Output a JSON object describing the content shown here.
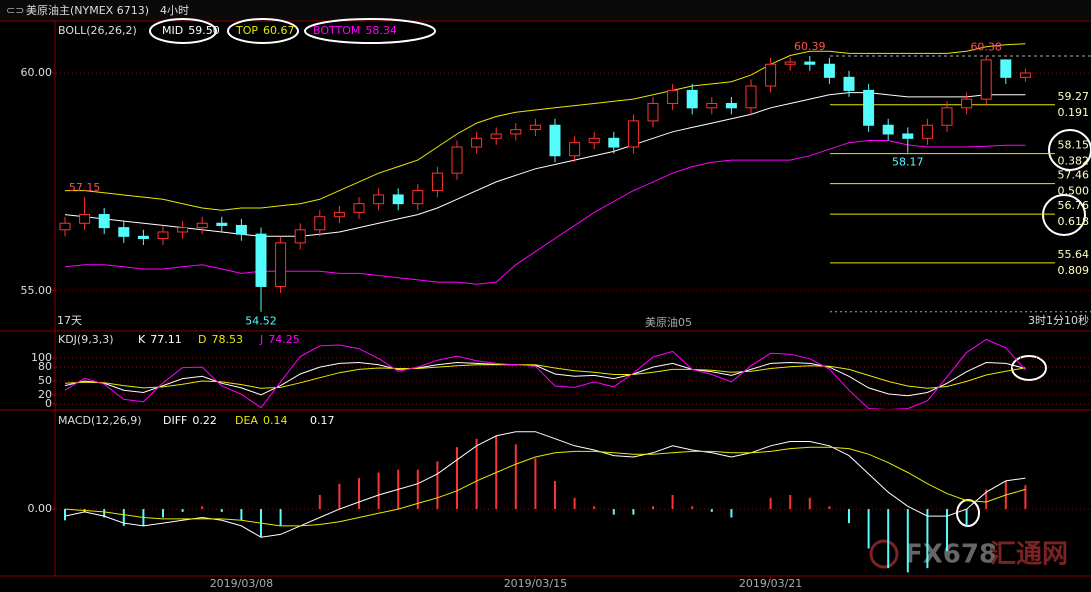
{
  "header": {
    "title": "美原油主(NYMEX 6713)",
    "period": "4小时",
    "days": "17天",
    "contract": "美原油05",
    "countdown": "3时1分10秒",
    "watermark": "FX678",
    "watermark_cn": "汇通网"
  },
  "chart_data": [
    {
      "type": "candlestick",
      "title": "BOLL(26,26,2)",
      "categories": [
        null,
        null,
        null,
        null,
        null,
        null,
        null,
        null,
        null,
        "2019/03/08",
        null,
        null,
        null,
        null,
        null,
        null,
        null,
        null,
        null,
        null,
        null,
        null,
        null,
        null,
        "2019/03/15",
        null,
        null,
        null,
        null,
        null,
        null,
        null,
        null,
        null,
        null,
        null,
        "2019/03/21",
        null,
        null,
        null,
        null,
        null,
        null,
        null,
        null,
        null,
        null,
        null,
        null,
        null
      ],
      "open": [
        56.4,
        56.55,
        56.75,
        56.45,
        56.25,
        56.2,
        56.35,
        56.45,
        56.55,
        56.5,
        56.3,
        55.1,
        56.1,
        56.4,
        56.7,
        56.8,
        57.0,
        57.2,
        57.0,
        57.3,
        57.7,
        58.3,
        58.5,
        58.6,
        58.7,
        58.8,
        58.1,
        58.4,
        58.5,
        58.3,
        58.9,
        59.3,
        59.6,
        59.2,
        59.3,
        59.2,
        59.7,
        60.2,
        60.25,
        60.2,
        59.9,
        59.6,
        58.8,
        58.6,
        58.5,
        58.8,
        59.2,
        59.4,
        60.3,
        59.9
      ],
      "high": [
        56.7,
        57.15,
        56.9,
        56.6,
        56.4,
        56.5,
        56.6,
        56.7,
        56.7,
        56.65,
        56.45,
        56.25,
        56.55,
        56.85,
        56.95,
        57.15,
        57.35,
        57.35,
        57.45,
        57.85,
        58.45,
        58.65,
        58.75,
        58.85,
        58.95,
        58.95,
        58.55,
        58.65,
        58.65,
        59.05,
        59.45,
        59.75,
        59.75,
        59.45,
        59.45,
        59.85,
        60.35,
        60.35,
        60.39,
        60.35,
        60.05,
        59.75,
        58.95,
        58.75,
        58.95,
        59.35,
        59.55,
        60.38,
        60.3,
        60.1
      ],
      "low": [
        56.25,
        56.4,
        56.3,
        56.1,
        56.05,
        56.05,
        56.2,
        56.3,
        56.35,
        56.15,
        54.52,
        54.95,
        55.95,
        56.25,
        56.55,
        56.65,
        56.85,
        56.85,
        56.85,
        57.15,
        57.55,
        58.15,
        58.35,
        58.45,
        58.55,
        57.95,
        57.95,
        58.25,
        58.15,
        58.15,
        58.75,
        59.15,
        59.05,
        59.05,
        59.05,
        59.05,
        59.55,
        60.05,
        60.05,
        59.75,
        59.45,
        58.65,
        58.45,
        58.17,
        58.35,
        58.65,
        59.05,
        59.25,
        59.75,
        59.8
      ],
      "close": [
        56.55,
        56.75,
        56.45,
        56.25,
        56.2,
        56.35,
        56.45,
        56.55,
        56.5,
        56.3,
        55.1,
        56.1,
        56.4,
        56.7,
        56.8,
        57.0,
        57.2,
        57.0,
        57.3,
        57.7,
        58.3,
        58.5,
        58.6,
        58.7,
        58.8,
        58.1,
        58.4,
        58.5,
        58.3,
        58.9,
        59.3,
        59.6,
        59.2,
        59.3,
        59.2,
        59.7,
        60.2,
        60.25,
        60.2,
        59.9,
        59.6,
        58.8,
        58.6,
        58.5,
        58.8,
        59.2,
        59.4,
        60.3,
        59.9,
        60.0
      ],
      "up_color": "#ff3232",
      "down_color": "#54fcfc",
      "series": [
        {
          "name": "MID",
          "color": "#ffffff",
          "last_label": "59.50",
          "values": [
            56.75,
            56.7,
            56.65,
            56.6,
            56.55,
            56.5,
            56.45,
            56.4,
            56.35,
            56.3,
            56.25,
            56.25,
            56.25,
            56.3,
            56.35,
            56.45,
            56.55,
            56.65,
            56.75,
            56.9,
            57.1,
            57.3,
            57.5,
            57.65,
            57.8,
            57.9,
            58.0,
            58.1,
            58.2,
            58.35,
            58.5,
            58.65,
            58.75,
            58.85,
            58.95,
            59.05,
            59.2,
            59.3,
            59.4,
            59.5,
            59.55,
            59.55,
            59.5,
            59.45,
            59.45,
            59.45,
            59.45,
            59.5,
            59.5,
            59.5
          ]
        },
        {
          "name": "TOP",
          "color": "#e8e800",
          "last_label": "60.67",
          "values": [
            57.3,
            57.3,
            57.25,
            57.2,
            57.15,
            57.1,
            57.0,
            56.9,
            56.85,
            56.9,
            56.9,
            56.95,
            57.0,
            57.1,
            57.3,
            57.5,
            57.7,
            57.85,
            58.0,
            58.3,
            58.6,
            58.85,
            59.0,
            59.1,
            59.15,
            59.2,
            59.25,
            59.3,
            59.35,
            59.4,
            59.5,
            59.6,
            59.7,
            59.75,
            59.8,
            59.95,
            60.2,
            60.4,
            60.5,
            60.5,
            60.45,
            60.45,
            60.45,
            60.45,
            60.45,
            60.45,
            60.5,
            60.6,
            60.65,
            60.67
          ]
        },
        {
          "name": "BOTTOM",
          "color": "#ff00ff",
          "last_label": "58.34",
          "values": [
            55.55,
            55.6,
            55.6,
            55.55,
            55.5,
            55.5,
            55.55,
            55.6,
            55.5,
            55.4,
            55.45,
            55.45,
            55.45,
            55.45,
            55.4,
            55.4,
            55.35,
            55.3,
            55.25,
            55.2,
            55.2,
            55.15,
            55.2,
            55.6,
            55.9,
            56.2,
            56.5,
            56.8,
            57.05,
            57.3,
            57.5,
            57.7,
            57.85,
            57.95,
            58.0,
            58.0,
            58.0,
            58.0,
            58.1,
            58.25,
            58.4,
            58.45,
            58.45,
            58.35,
            58.3,
            58.3,
            58.3,
            58.32,
            58.34,
            58.34
          ]
        }
      ],
      "price_labels": [
        "57.15",
        "54.52",
        "60.39",
        "58.17",
        "60.38"
      ],
      "levels": [
        {
          "value": 59.27,
          "ratio": "0.191"
        },
        {
          "value": 58.15,
          "ratio": "0.382"
        },
        {
          "value": 57.46,
          "ratio": "0.500"
        },
        {
          "value": 56.76,
          "ratio": "0.618"
        },
        {
          "value": 55.64,
          "ratio": "0.809"
        }
      ],
      "level_color": "#e8e800",
      "ylim": [
        54.1,
        61.17
      ],
      "yticks": [
        {
          "value": 60,
          "label": "60.00"
        },
        {
          "value": 55,
          "label": "55.00"
        }
      ],
      "grid": true
    },
    {
      "type": "line",
      "title": "KDJ(9,3,3)",
      "series": [
        {
          "name": "K",
          "color": "#ffffff",
          "last_label": "77.11",
          "values": [
            40,
            50,
            45,
            30,
            25,
            40,
            55,
            60,
            45,
            35,
            20,
            40,
            65,
            80,
            88,
            90,
            85,
            75,
            78,
            85,
            90,
            88,
            86,
            85,
            84,
            65,
            60,
            62,
            55,
            65,
            80,
            88,
            75,
            70,
            62,
            75,
            88,
            90,
            88,
            80,
            60,
            35,
            22,
            18,
            25,
            45,
            70,
            90,
            88,
            77.11
          ]
        },
        {
          "name": "D",
          "color": "#e8e800",
          "last_label": "78.53",
          "values": [
            45,
            47,
            46,
            40,
            35,
            37,
            43,
            50,
            48,
            42,
            34,
            36,
            46,
            57,
            68,
            75,
            78,
            77,
            77,
            80,
            83,
            85,
            85,
            85,
            85,
            78,
            72,
            69,
            64,
            64,
            69,
            75,
            75,
            73,
            69,
            71,
            77,
            81,
            83,
            82,
            75,
            62,
            49,
            39,
            34,
            38,
            49,
            63,
            71,
            78.53
          ]
        },
        {
          "name": "J",
          "color": "#ff00ff",
          "last_label": "74.25",
          "values": [
            30,
            56,
            43,
            10,
            5,
            46,
            79,
            80,
            39,
            21,
            -8,
            48,
            103,
            126,
            128,
            120,
            99,
            71,
            80,
            95,
            104,
            94,
            88,
            85,
            82,
            39,
            36,
            48,
            37,
            67,
            102,
            114,
            75,
            64,
            48,
            83,
            110,
            108,
            98,
            76,
            30,
            -10,
            -12,
            -10,
            7,
            59,
            112,
            140,
            122,
            74.25
          ]
        }
      ],
      "ylim": [
        -13,
        154
      ],
      "yticks": [
        100,
        80,
        50,
        20,
        0
      ],
      "grid": true
    },
    {
      "type": "macd",
      "title": "MACD(12,26,9)",
      "series": [
        {
          "name": "DIFF",
          "color": "#ffffff",
          "last_label": "0.22",
          "values": [
            -0.05,
            -0.02,
            -0.05,
            -0.1,
            -0.12,
            -0.1,
            -0.08,
            -0.06,
            -0.08,
            -0.12,
            -0.2,
            -0.18,
            -0.12,
            -0.06,
            0.0,
            0.05,
            0.1,
            0.14,
            0.18,
            0.25,
            0.35,
            0.45,
            0.52,
            0.55,
            0.55,
            0.5,
            0.45,
            0.42,
            0.38,
            0.37,
            0.4,
            0.45,
            0.42,
            0.4,
            0.37,
            0.4,
            0.45,
            0.48,
            0.48,
            0.45,
            0.38,
            0.25,
            0.12,
            0.02,
            -0.05,
            -0.05,
            0.0,
            0.12,
            0.2,
            0.22
          ]
        },
        {
          "name": "DEA",
          "color": "#e8e800",
          "last_label": "0.14",
          "values": [
            0.0,
            -0.01,
            -0.02,
            -0.04,
            -0.06,
            -0.07,
            -0.07,
            -0.07,
            -0.07,
            -0.08,
            -0.1,
            -0.12,
            -0.12,
            -0.11,
            -0.09,
            -0.06,
            -0.03,
            0.0,
            0.04,
            0.08,
            0.13,
            0.2,
            0.26,
            0.32,
            0.37,
            0.4,
            0.41,
            0.41,
            0.4,
            0.39,
            0.39,
            0.4,
            0.41,
            0.41,
            0.4,
            0.4,
            0.41,
            0.43,
            0.44,
            0.44,
            0.43,
            0.39,
            0.33,
            0.26,
            0.18,
            0.11,
            0.06,
            0.05,
            0.1,
            0.14
          ]
        }
      ],
      "histogram": {
        "last_label": "0.17",
        "up_color": "#ff3232",
        "down_color": "#54fcfc",
        "values": [
          -0.08,
          -0.02,
          -0.06,
          -0.12,
          -0.12,
          -0.06,
          -0.02,
          0.02,
          -0.02,
          -0.08,
          -0.2,
          -0.12,
          0.0,
          0.1,
          0.18,
          0.22,
          0.26,
          0.28,
          0.28,
          0.34,
          0.44,
          0.5,
          0.52,
          0.46,
          0.36,
          0.2,
          0.08,
          0.02,
          -0.04,
          -0.04,
          0.02,
          0.1,
          0.02,
          -0.02,
          -0.06,
          0.0,
          0.08,
          0.1,
          0.08,
          0.02,
          -0.1,
          -0.28,
          -0.42,
          -0.45,
          -0.42,
          -0.3,
          -0.12,
          0.14,
          0.2,
          0.17
        ]
      },
      "ylim": [
        -0.49,
        0.69
      ],
      "yticks": [
        {
          "value": 0,
          "label": "0.00"
        }
      ],
      "grid": true
    }
  ]
}
